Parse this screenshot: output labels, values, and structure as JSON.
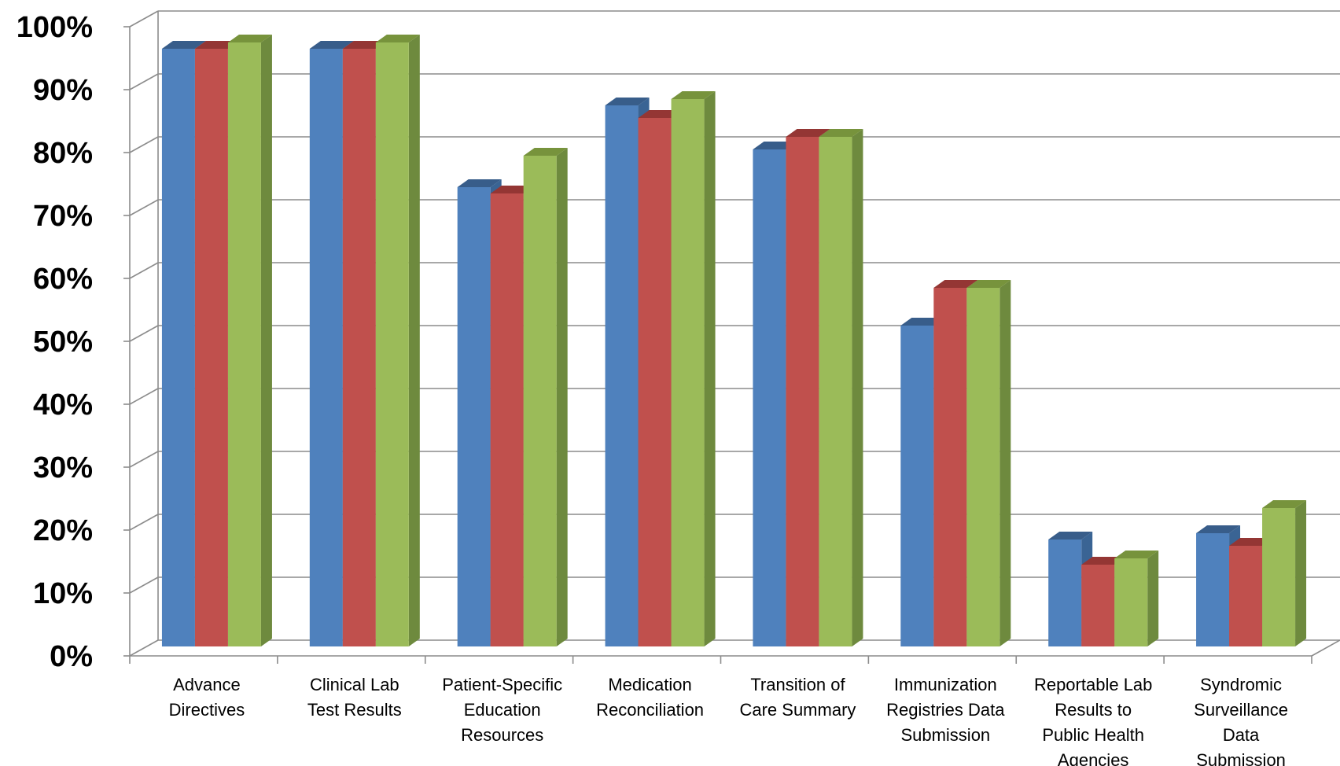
{
  "chart_data": {
    "type": "bar",
    "title": "",
    "xlabel": "",
    "ylabel": "",
    "ylim": [
      0,
      100
    ],
    "y_ticks": [
      "0%",
      "10%",
      "20%",
      "30%",
      "40%",
      "50%",
      "60%",
      "70%",
      "80%",
      "90%",
      "100%"
    ],
    "grid": true,
    "legend": "none",
    "categories": [
      "Advance Directives",
      "Clinical Lab Test Results",
      "Patient-Specific Education Resources",
      "Medication Reconciliation",
      "Transition of Care Summary",
      "Immunization Registries Data Submission",
      "Reportable Lab Results to Public Health Agencies",
      "Syndromic Surveillance Data Submission"
    ],
    "category_lines": [
      [
        "Advance",
        "Directives"
      ],
      [
        "Clinical Lab",
        "Test Results"
      ],
      [
        "Patient-Specific",
        "Education",
        "Resources"
      ],
      [
        "Medication",
        "Reconciliation"
      ],
      [
        "Transition of",
        "Care Summary"
      ],
      [
        "Immunization",
        "Registries Data",
        "Submission"
      ],
      [
        "Reportable Lab",
        "Results to",
        "Public Health",
        "Agencies"
      ],
      [
        "Syndromic",
        "Surveillance",
        "Data",
        "Submission"
      ]
    ],
    "series": [
      {
        "values": [
          95,
          95,
          73,
          86,
          79,
          51,
          17,
          18
        ],
        "color": "#4F81BD",
        "top_color": "#385D8A",
        "side_color": "#3A6494"
      },
      {
        "values": [
          95,
          95,
          72,
          84,
          81,
          57,
          13,
          16
        ],
        "color": "#C0504D",
        "top_color": "#943634",
        "side_color": "#8E3B38"
      },
      {
        "values": [
          96,
          96,
          78,
          87,
          81,
          57,
          14,
          22
        ],
        "color": "#9BBB59",
        "top_color": "#77933C",
        "side_color": "#6E8A3E"
      }
    ]
  }
}
